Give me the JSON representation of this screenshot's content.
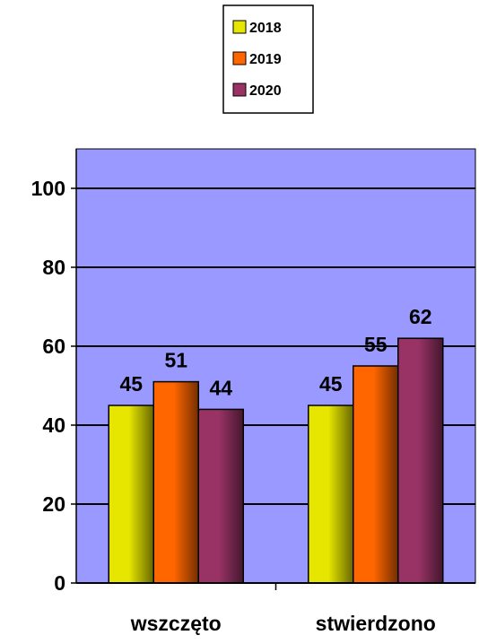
{
  "chart_data": {
    "type": "bar",
    "categories": [
      "wszczęto",
      "stwierdzono"
    ],
    "series": [
      {
        "name": "2018",
        "values": [
          45,
          45
        ],
        "color": "#e6e600"
      },
      {
        "name": "2019",
        "values": [
          51,
          55
        ],
        "color": "#ff6600"
      },
      {
        "name": "2020",
        "values": [
          44,
          62
        ],
        "color": "#993366"
      }
    ],
    "y_ticks": [
      "0",
      "20",
      "40",
      "60",
      "80",
      "100"
    ],
    "ylim": [
      0,
      110
    ],
    "grid": true,
    "legend_position": "top-center",
    "data_labels": true,
    "plot_background": "#9999ff",
    "gridline_color": "#000000",
    "bar_style": "gradient"
  }
}
